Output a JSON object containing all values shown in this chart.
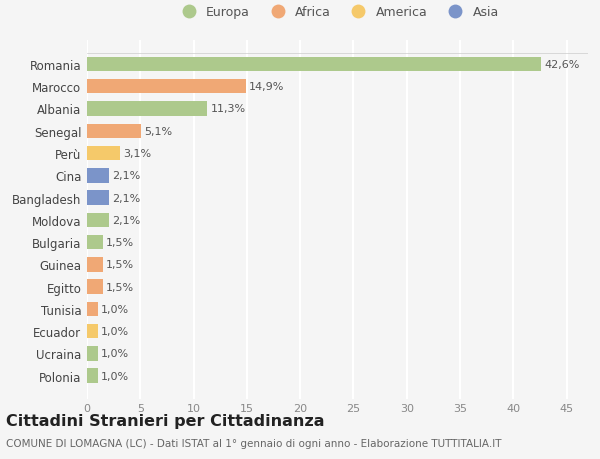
{
  "countries": [
    "Polonia",
    "Ucraina",
    "Ecuador",
    "Tunisia",
    "Egitto",
    "Guinea",
    "Bulgaria",
    "Moldova",
    "Bangladesh",
    "Cina",
    "Perù",
    "Senegal",
    "Albania",
    "Marocco",
    "Romania"
  ],
  "values": [
    1.0,
    1.0,
    1.0,
    1.0,
    1.5,
    1.5,
    1.5,
    2.1,
    2.1,
    2.1,
    3.1,
    5.1,
    11.3,
    14.9,
    42.6
  ],
  "labels": [
    "1,0%",
    "1,0%",
    "1,0%",
    "1,0%",
    "1,5%",
    "1,5%",
    "1,5%",
    "2,1%",
    "2,1%",
    "2,1%",
    "3,1%",
    "5,1%",
    "11,3%",
    "14,9%",
    "42,6%"
  ],
  "colors": [
    "#adc98c",
    "#adc98c",
    "#f5c96a",
    "#f0a875",
    "#f0a875",
    "#f0a875",
    "#adc98c",
    "#adc98c",
    "#7b94c9",
    "#7b94c9",
    "#f5c96a",
    "#f0a875",
    "#adc98c",
    "#f0a875",
    "#adc98c"
  ],
  "legend": [
    {
      "label": "Europa",
      "color": "#adc98c"
    },
    {
      "label": "Africa",
      "color": "#f0a875"
    },
    {
      "label": "America",
      "color": "#f5c96a"
    },
    {
      "label": "Asia",
      "color": "#7b94c9"
    }
  ],
  "xlim": [
    0,
    47
  ],
  "xticks": [
    0,
    5,
    10,
    15,
    20,
    25,
    30,
    35,
    40,
    45
  ],
  "title": "Cittadini Stranieri per Cittadinanza",
  "subtitle": "COMUNE DI LOMAGNA (LC) - Dati ISTAT al 1° gennaio di ogni anno - Elaborazione TUTTITALIA.IT",
  "bg_color": "#f5f5f5",
  "grid_color": "#ffffff",
  "bar_height": 0.65,
  "label_fontsize": 8,
  "country_fontsize": 8.5,
  "title_fontsize": 11.5,
  "subtitle_fontsize": 7.5
}
